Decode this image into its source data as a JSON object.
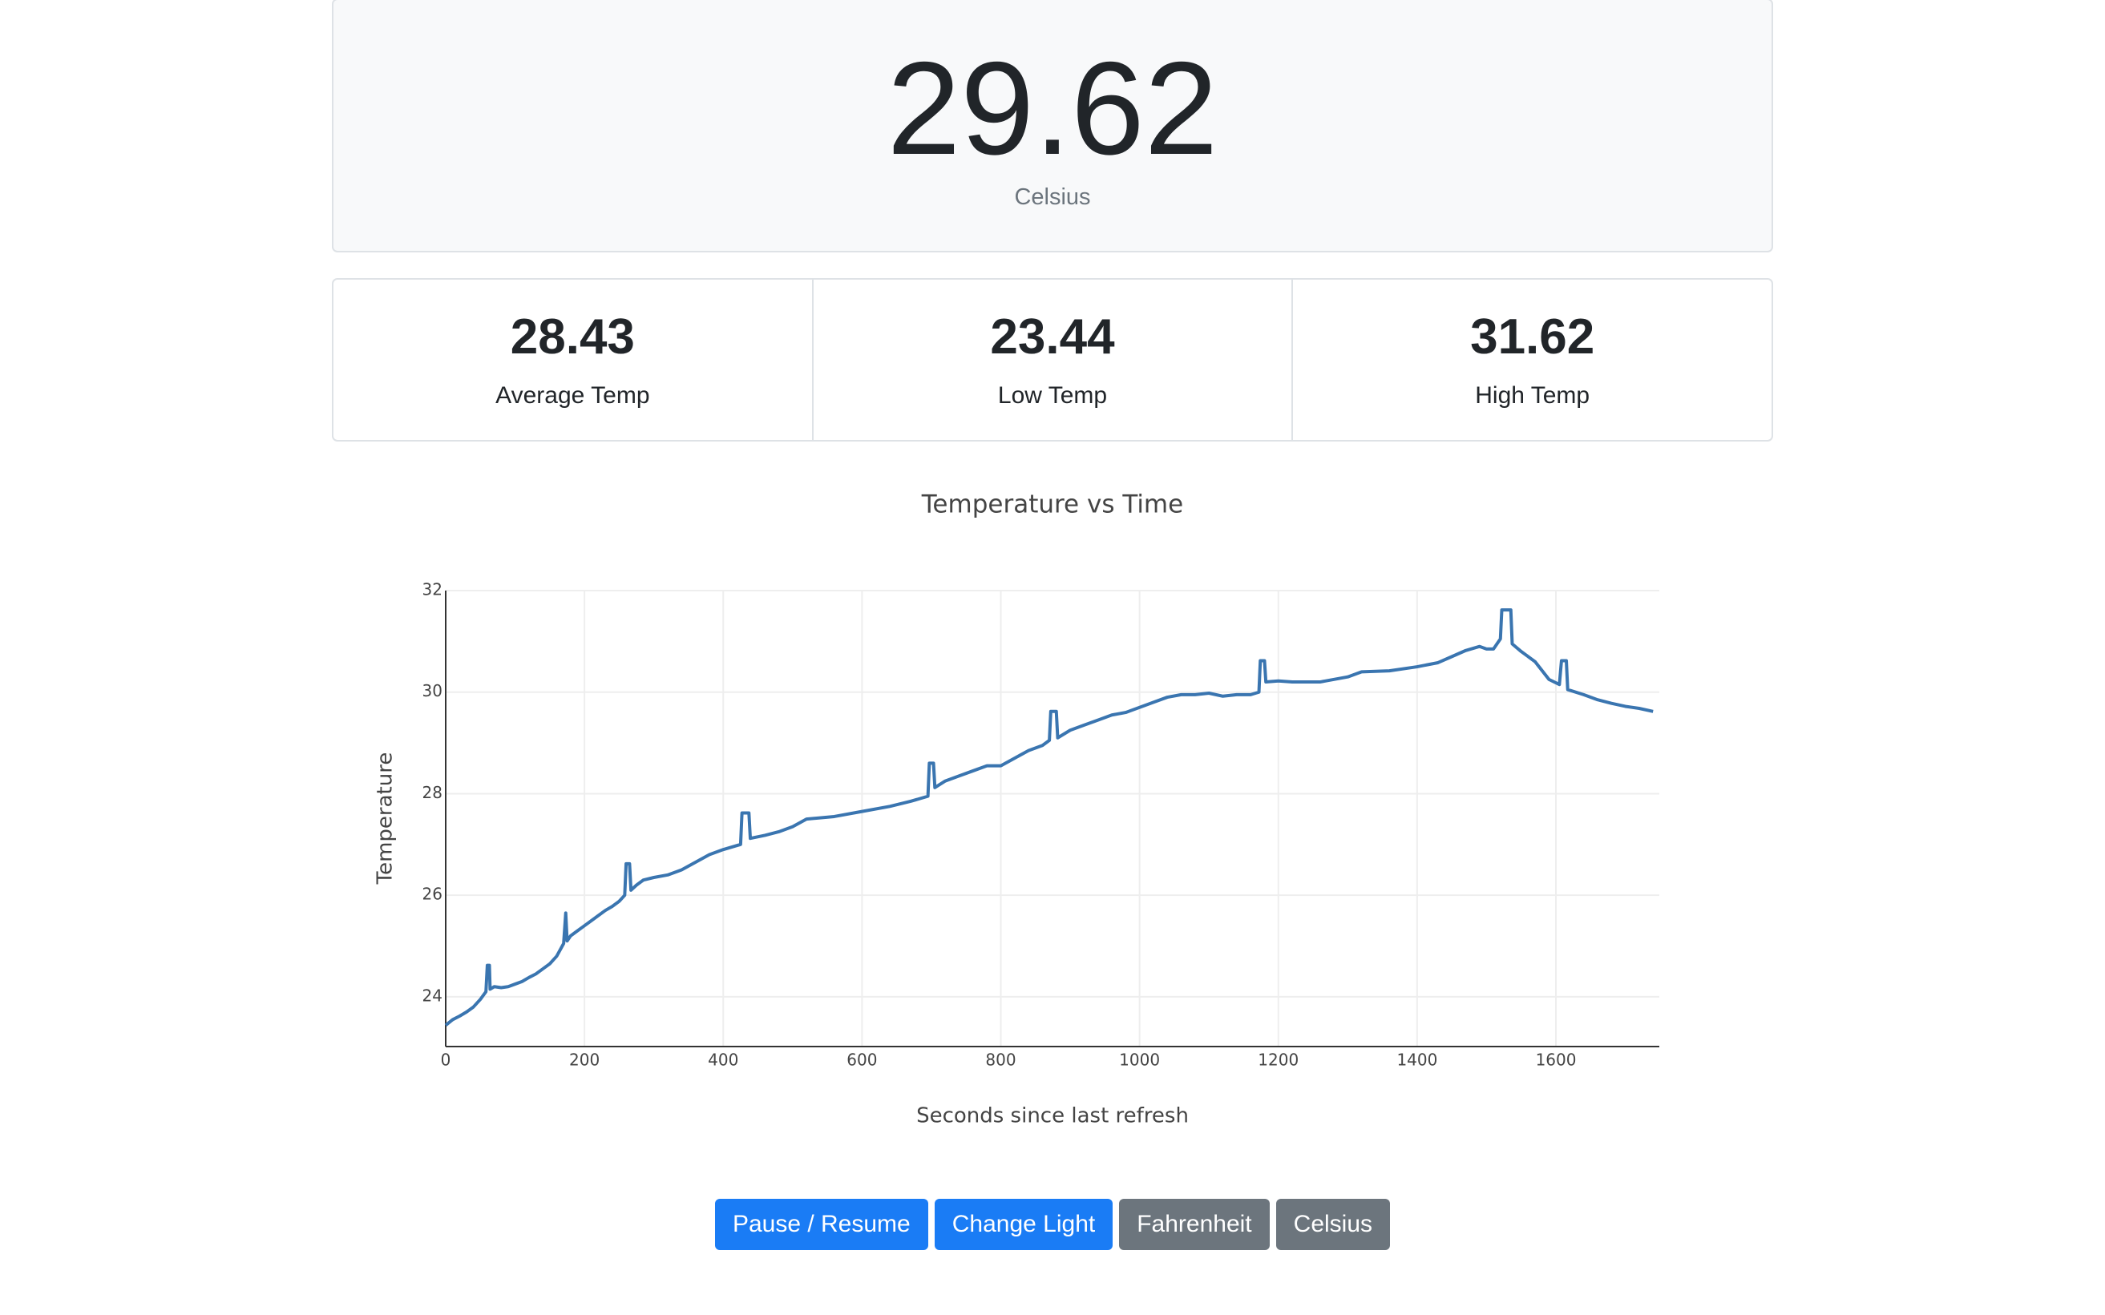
{
  "header": {
    "value": 29.62,
    "unit": "Celsius"
  },
  "stats": [
    {
      "value": 28.43,
      "label": "Average Temp"
    },
    {
      "value": 23.44,
      "label": "Low Temp"
    },
    {
      "value": 31.62,
      "label": "High Temp"
    }
  ],
  "chart_data": {
    "type": "line",
    "title": "Temperature vs Time",
    "x_label": "Seconds since last refresh",
    "y_label": "Temperature",
    "x": [
      0,
      10,
      20,
      30,
      40,
      50,
      58,
      60,
      63,
      64,
      70,
      80,
      90,
      100,
      110,
      120,
      130,
      140,
      150,
      160,
      170,
      173,
      175,
      180,
      190,
      200,
      210,
      220,
      230,
      240,
      250,
      258,
      260,
      265,
      267,
      275,
      285,
      300,
      320,
      340,
      360,
      380,
      400,
      420,
      425,
      427,
      437,
      439,
      460,
      480,
      500,
      520,
      560,
      600,
      640,
      670,
      695,
      697,
      703,
      705,
      720,
      740,
      760,
      780,
      800,
      820,
      840,
      860,
      870,
      872,
      880,
      882,
      900,
      920,
      940,
      960,
      980,
      1000,
      1020,
      1040,
      1060,
      1080,
      1100,
      1120,
      1140,
      1160,
      1172,
      1174,
      1180,
      1182,
      1200,
      1220,
      1260,
      1300,
      1320,
      1360,
      1400,
      1430,
      1450,
      1470,
      1490,
      1500,
      1510,
      1520,
      1522,
      1535,
      1537,
      1550,
      1570,
      1590,
      1605,
      1608,
      1615,
      1617,
      1640,
      1660,
      1680,
      1700,
      1720,
      1740
    ],
    "series": [
      {
        "color": "#3a75b0",
        "values": [
          23.44,
          23.55,
          23.62,
          23.7,
          23.8,
          23.95,
          24.1,
          24.62,
          24.62,
          24.15,
          24.2,
          24.18,
          24.2,
          24.25,
          24.3,
          24.38,
          24.45,
          24.55,
          24.65,
          24.8,
          25.05,
          25.65,
          25.1,
          25.2,
          25.3,
          25.4,
          25.5,
          25.6,
          25.7,
          25.78,
          25.88,
          26.0,
          26.62,
          26.62,
          26.1,
          26.2,
          26.3,
          26.35,
          26.4,
          26.5,
          26.65,
          26.8,
          26.9,
          26.98,
          27.0,
          27.62,
          27.62,
          27.12,
          27.18,
          27.25,
          27.35,
          27.5,
          27.55,
          27.65,
          27.75,
          27.85,
          27.95,
          28.6,
          28.6,
          28.12,
          28.25,
          28.35,
          28.45,
          28.55,
          28.55,
          28.7,
          28.85,
          28.95,
          29.05,
          29.62,
          29.62,
          29.1,
          29.25,
          29.35,
          29.45,
          29.55,
          29.6,
          29.7,
          29.8,
          29.9,
          29.95,
          29.95,
          29.98,
          29.92,
          29.95,
          29.95,
          30.0,
          30.62,
          30.62,
          30.2,
          30.22,
          30.2,
          30.2,
          30.3,
          30.4,
          30.42,
          30.5,
          30.58,
          30.7,
          30.82,
          30.9,
          30.85,
          30.85,
          31.05,
          31.62,
          31.62,
          30.95,
          30.8,
          30.6,
          30.25,
          30.15,
          30.62,
          30.62,
          30.05,
          29.95,
          29.85,
          29.78,
          29.72,
          29.68,
          29.62
        ]
      }
    ],
    "xlim": [
      0,
      1749
    ],
    "ylim": [
      23.02,
      32
    ],
    "xticks": [
      0,
      200,
      400,
      600,
      800,
      1000,
      1200,
      1400,
      1600
    ],
    "yticks": [
      24,
      26,
      28,
      30,
      32
    ],
    "grid": true
  },
  "buttons": [
    "Pause / Resume",
    "Change Light",
    "Fahrenheit",
    "Celsius"
  ]
}
